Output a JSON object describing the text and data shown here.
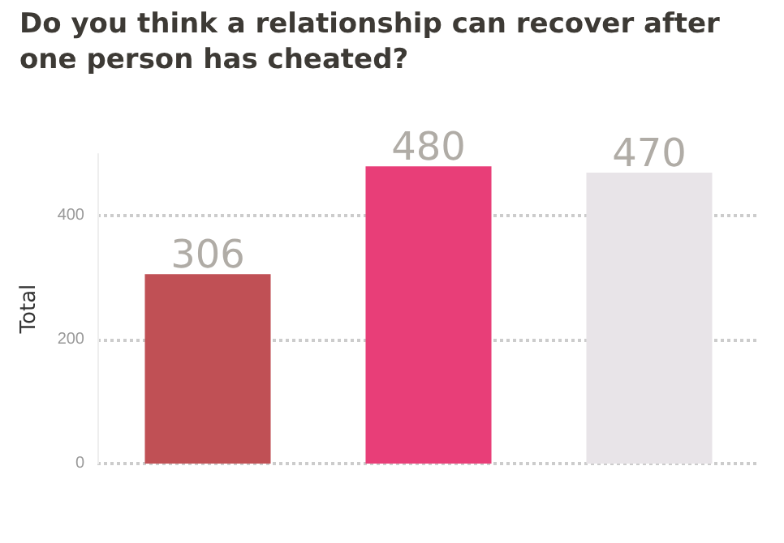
{
  "chart_data": {
    "type": "bar",
    "title": "Do you think a relationship can recover after one person has cheated?",
    "ylabel": "Total",
    "categories": [
      null,
      null,
      null
    ],
    "values": [
      306,
      480,
      470
    ],
    "colors": [
      "#c05055",
      "#e83e78",
      "#e8e4e8"
    ],
    "ylim": [
      0,
      500
    ],
    "yticks": [
      0,
      200,
      400
    ],
    "grid": "y",
    "data_labels": true
  }
}
